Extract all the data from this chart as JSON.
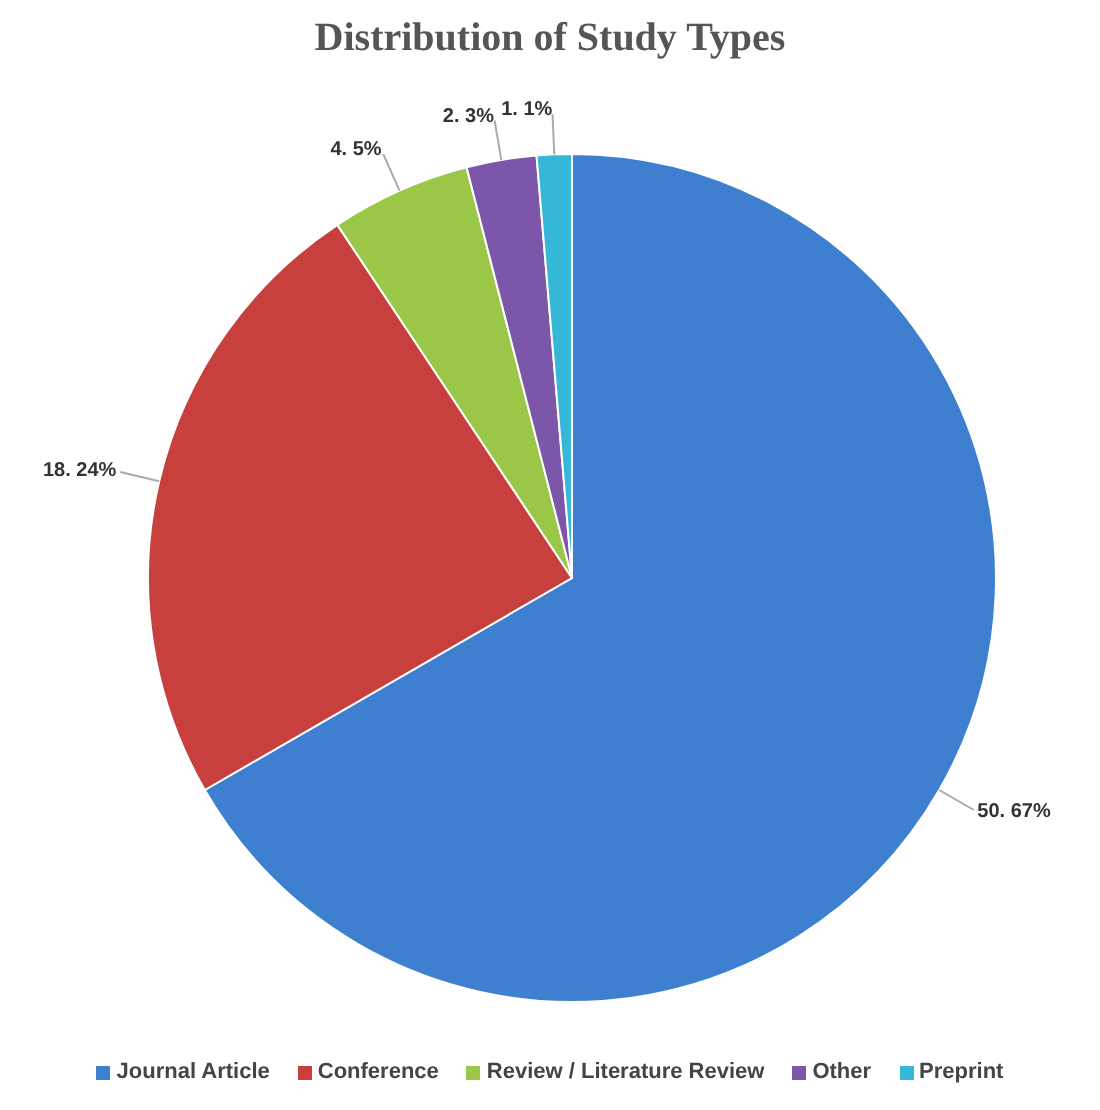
{
  "chart_data": {
    "type": "pie",
    "title": "Distribution of Study Types",
    "categories": [
      "Journal Article",
      "Conference",
      "Review / Literature Review",
      "Other",
      "Preprint"
    ],
    "values": [
      50,
      18,
      4,
      2,
      1
    ],
    "value_labels": [
      "50. 67%",
      "18. 24%",
      "4. 5%",
      "2. 3%",
      "1. 1%"
    ],
    "colors": [
      "#3f7fcf",
      "#c8403d",
      "#9bc749",
      "#7c56a8",
      "#35b8d8"
    ],
    "legend": "bottom"
  }
}
